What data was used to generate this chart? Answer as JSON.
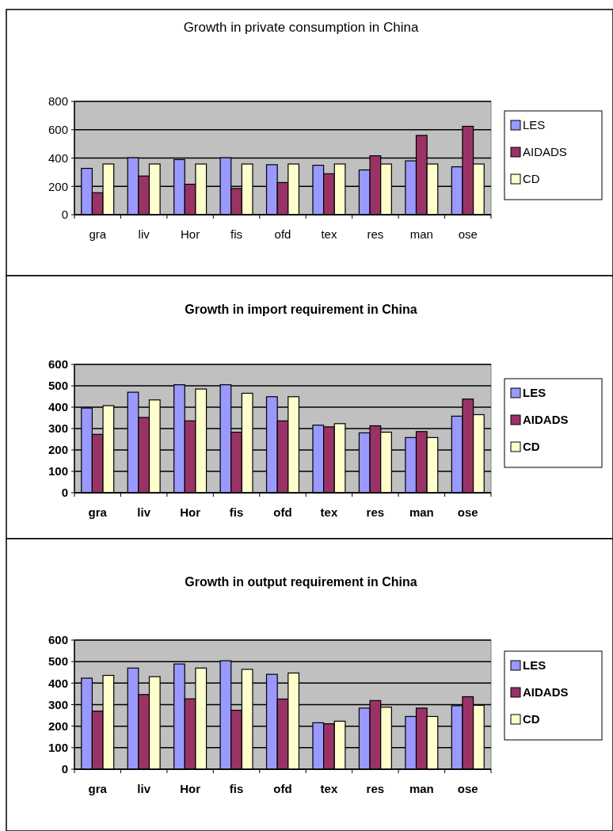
{
  "chart_data": [
    {
      "type": "bar",
      "title": "Growth in private consumption in China",
      "categories": [
        "gra",
        "liv",
        "Hor",
        "fis",
        "ofd",
        "tex",
        "res",
        "man",
        "ose"
      ],
      "series": [
        {
          "name": "LES",
          "color": "#9999ff",
          "values": [
            327,
            402,
            389,
            402,
            353,
            349,
            316,
            380,
            338
          ]
        },
        {
          "name": "AIDADS",
          "color": "#993366",
          "values": [
            155,
            273,
            215,
            185,
            227,
            289,
            416,
            560,
            624
          ]
        },
        {
          "name": "CD",
          "color": "#ffffcc",
          "values": [
            358,
            358,
            358,
            358,
            358,
            358,
            358,
            358,
            358
          ]
        }
      ],
      "ylim": [
        0,
        800
      ],
      "yticks": [
        0,
        200,
        400,
        600,
        800
      ],
      "grid": "y",
      "legend": "right"
    },
    {
      "type": "bar",
      "title": "Growth in import requirement in China",
      "categories": [
        "gra",
        "liv",
        "Hor",
        "fis",
        "ofd",
        "tex",
        "res",
        "man",
        "ose"
      ],
      "series": [
        {
          "name": "LES",
          "color": "#9999ff",
          "values": [
            396,
            470,
            505,
            505,
            449,
            316,
            280,
            258,
            358
          ]
        },
        {
          "name": "AIDADS",
          "color": "#993366",
          "values": [
            273,
            352,
            336,
            283,
            336,
            308,
            313,
            286,
            438
          ]
        },
        {
          "name": "CD",
          "color": "#ffffcc",
          "values": [
            407,
            434,
            485,
            465,
            449,
            323,
            283,
            258,
            365
          ]
        }
      ],
      "ylim": [
        0,
        600
      ],
      "yticks": [
        0,
        100,
        200,
        300,
        400,
        500,
        600
      ],
      "grid": "y",
      "legend": "right"
    },
    {
      "type": "bar",
      "title": "Growth in output requirement in China",
      "categories": [
        "gra",
        "liv",
        "Hor",
        "fis",
        "ofd",
        "tex",
        "res",
        "man",
        "ose"
      ],
      "series": [
        {
          "name": "LES",
          "color": "#9999ff",
          "values": [
            423,
            470,
            489,
            504,
            441,
            216,
            284,
            245,
            295
          ]
        },
        {
          "name": "AIDADS",
          "color": "#993366",
          "values": [
            270,
            347,
            327,
            274,
            326,
            211,
            319,
            284,
            337
          ]
        },
        {
          "name": "CD",
          "color": "#ffffcc",
          "values": [
            436,
            430,
            470,
            464,
            447,
            223,
            288,
            245,
            297
          ]
        }
      ],
      "ylim": [
        0,
        600
      ],
      "yticks": [
        0,
        100,
        200,
        300,
        400,
        500,
        600
      ],
      "grid": "y",
      "legend": "right"
    }
  ]
}
